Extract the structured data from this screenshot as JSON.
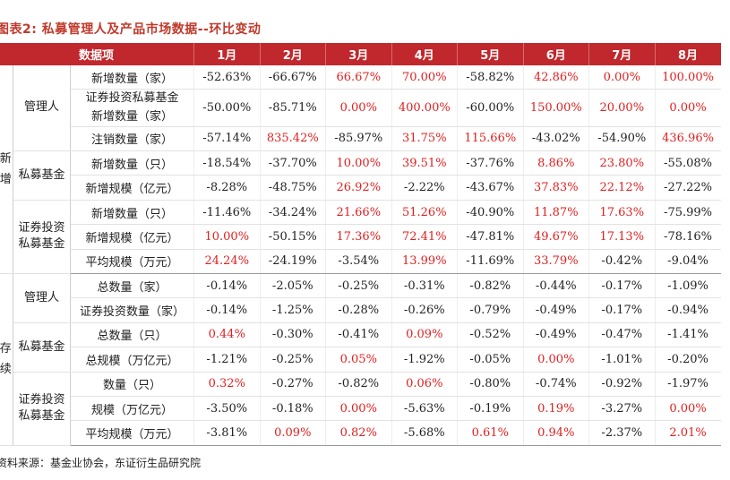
{
  "title": "图表2: 私募管理人及产品市场数据--环比变动",
  "header": {
    "item": "数据项",
    "months": [
      "1月",
      "2月",
      "3月",
      "4月",
      "5月",
      "6月",
      "7月",
      "8月"
    ]
  },
  "colors": {
    "header_bg": "#c0282d",
    "positive": "#e02020",
    "negative": "#222222"
  },
  "groups": [
    {
      "label": "新增",
      "sections": [
        {
          "label": "管理人",
          "rows": [
            {
              "label": "新增数量（家）",
              "values": [
                "-52.63%",
                "-66.67%",
                "66.67%",
                "70.00%",
                "-58.82%",
                "42.86%",
                "0.00%",
                "100.00%"
              ]
            },
            {
              "label": "证券投资私募基金新增数量（家）",
              "values": [
                "-50.00%",
                "-85.71%",
                "0.00%",
                "400.00%",
                "-60.00%",
                "150.00%",
                "20.00%",
                "0.00%"
              ]
            },
            {
              "label": "注销数量（家）",
              "values": [
                "-57.14%",
                "835.42%",
                "-85.97%",
                "31.75%",
                "115.66%",
                "-43.02%",
                "-54.90%",
                "436.96%"
              ]
            }
          ]
        },
        {
          "label": "私募基金",
          "rows": [
            {
              "label": "新增数量（只）",
              "values": [
                "-18.54%",
                "-37.70%",
                "10.00%",
                "39.51%",
                "-37.76%",
                "8.86%",
                "23.80%",
                "-55.08%"
              ]
            },
            {
              "label": "新增规模（亿元）",
              "values": [
                "-8.28%",
                "-48.75%",
                "26.92%",
                "-2.22%",
                "-43.67%",
                "37.83%",
                "22.12%",
                "-27.22%"
              ]
            }
          ]
        },
        {
          "label": "证券投资私募基金",
          "rows": [
            {
              "label": "新增数量（只）",
              "values": [
                "-11.46%",
                "-34.24%",
                "21.66%",
                "51.26%",
                "-40.90%",
                "11.87%",
                "17.63%",
                "-75.99%"
              ]
            },
            {
              "label": "新增规模（亿元）",
              "values": [
                "10.00%",
                "-50.15%",
                "17.36%",
                "72.41%",
                "-47.81%",
                "49.67%",
                "17.13%",
                "-78.16%"
              ]
            },
            {
              "label": "平均规模（万元）",
              "values": [
                "24.24%",
                "-24.19%",
                "-3.54%",
                "13.99%",
                "-11.69%",
                "33.79%",
                "-0.42%",
                "-9.04%"
              ]
            }
          ]
        }
      ]
    },
    {
      "label": "存续",
      "sections": [
        {
          "label": "管理人",
          "rows": [
            {
              "label": "总数量（家）",
              "values": [
                "-0.14%",
                "-2.05%",
                "-0.25%",
                "-0.31%",
                "-0.82%",
                "-0.44%",
                "-0.17%",
                "-1.09%"
              ]
            },
            {
              "label": "证券投资数量（家）",
              "values": [
                "-0.14%",
                "-1.25%",
                "-0.28%",
                "-0.26%",
                "-0.79%",
                "-0.49%",
                "-0.17%",
                "-0.94%"
              ]
            }
          ]
        },
        {
          "label": "私募基金",
          "rows": [
            {
              "label": "总数量（只）",
              "values": [
                "0.44%",
                "-0.30%",
                "-0.41%",
                "0.09%",
                "-0.52%",
                "-0.49%",
                "-0.47%",
                "-1.41%"
              ]
            },
            {
              "label": "总规模（万亿元）",
              "values": [
                "-1.21%",
                "-0.25%",
                "0.05%",
                "-1.92%",
                "-0.05%",
                "0.00%",
                "-1.01%",
                "-0.20%"
              ]
            }
          ]
        },
        {
          "label": "证券投资私募基金",
          "rows": [
            {
              "label": "数量（只）",
              "values": [
                "0.32%",
                "-0.27%",
                "-0.82%",
                "0.06%",
                "-0.80%",
                "-0.74%",
                "-0.92%",
                "-1.97%"
              ]
            },
            {
              "label": "规模（万亿元）",
              "values": [
                "-3.50%",
                "-0.18%",
                "0.00%",
                "-5.63%",
                "-0.19%",
                "0.19%",
                "-3.27%",
                "0.00%"
              ]
            },
            {
              "label": "平均规模（万元）",
              "values": [
                "-3.81%",
                "0.09%",
                "0.82%",
                "-5.68%",
                "0.61%",
                "0.94%",
                "-2.37%",
                "2.01%"
              ]
            }
          ]
        }
      ]
    }
  ],
  "source": "资料来源：基金业协会，东证衍生品研究院"
}
